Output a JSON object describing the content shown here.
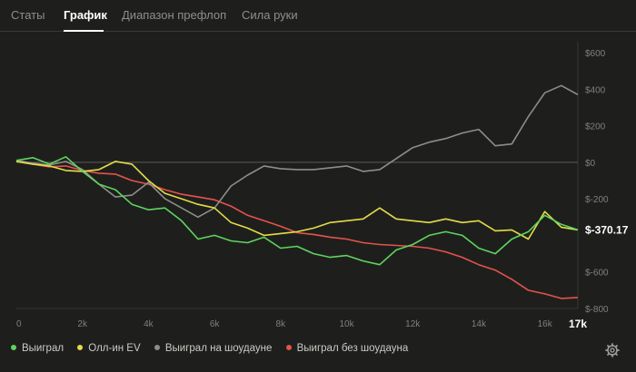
{
  "tabs": [
    {
      "label": "Статы",
      "active": false
    },
    {
      "label": "График",
      "active": true
    },
    {
      "label": "Диапазон префлоп",
      "active": false
    },
    {
      "label": "Сила руки",
      "active": false
    }
  ],
  "chart_data": {
    "type": "line",
    "x_label_max": "17k",
    "current_value_label": "$-370.17",
    "xlim": [
      0,
      17000
    ],
    "ylim": [
      -800,
      600
    ],
    "x_ticks": [
      {
        "v": 0,
        "label": "0"
      },
      {
        "v": 2000,
        "label": "2k"
      },
      {
        "v": 4000,
        "label": "4k"
      },
      {
        "v": 6000,
        "label": "6k"
      },
      {
        "v": 8000,
        "label": "8k"
      },
      {
        "v": 10000,
        "label": "10k"
      },
      {
        "v": 12000,
        "label": "12k"
      },
      {
        "v": 14000,
        "label": "14k"
      },
      {
        "v": 16000,
        "label": "16k"
      }
    ],
    "y_ticks": [
      {
        "v": 600,
        "label": "$600"
      },
      {
        "v": 400,
        "label": "$400"
      },
      {
        "v": 200,
        "label": "$200"
      },
      {
        "v": 0,
        "label": "$0"
      },
      {
        "v": -200,
        "label": "$-200"
      },
      {
        "v": -600,
        "label": "$-600"
      },
      {
        "v": -800,
        "label": "$-800"
      }
    ],
    "series": [
      {
        "name": "Выиграл без шоудауна",
        "color": "#e5534b",
        "points": [
          [
            0,
            5
          ],
          [
            500,
            -10
          ],
          [
            1000,
            -25
          ],
          [
            1500,
            -20
          ],
          [
            2000,
            -45
          ],
          [
            2500,
            -60
          ],
          [
            3000,
            -65
          ],
          [
            3500,
            -100
          ],
          [
            4000,
            -120
          ],
          [
            4500,
            -150
          ],
          [
            5000,
            -175
          ],
          [
            5500,
            -190
          ],
          [
            6000,
            -205
          ],
          [
            6500,
            -240
          ],
          [
            7000,
            -290
          ],
          [
            7500,
            -320
          ],
          [
            8000,
            -350
          ],
          [
            8500,
            -385
          ],
          [
            9000,
            -395
          ],
          [
            9500,
            -410
          ],
          [
            10000,
            -420
          ],
          [
            10500,
            -440
          ],
          [
            11000,
            -450
          ],
          [
            11500,
            -455
          ],
          [
            12000,
            -460
          ],
          [
            12500,
            -470
          ],
          [
            13000,
            -490
          ],
          [
            13500,
            -520
          ],
          [
            14000,
            -560
          ],
          [
            14500,
            -590
          ],
          [
            15000,
            -640
          ],
          [
            15500,
            -700
          ],
          [
            16000,
            -720
          ],
          [
            16500,
            -745
          ],
          [
            17000,
            -740
          ]
        ]
      },
      {
        "name": "Выиграл на шоудауне",
        "color": "#8c8e8a",
        "points": [
          [
            0,
            10
          ],
          [
            500,
            -5
          ],
          [
            1000,
            -15
          ],
          [
            1500,
            5
          ],
          [
            2000,
            -40
          ],
          [
            2500,
            -120
          ],
          [
            3000,
            -190
          ],
          [
            3500,
            -180
          ],
          [
            4000,
            -110
          ],
          [
            4500,
            -200
          ],
          [
            5000,
            -250
          ],
          [
            5500,
            -300
          ],
          [
            6000,
            -250
          ],
          [
            6500,
            -130
          ],
          [
            7000,
            -70
          ],
          [
            7500,
            -20
          ],
          [
            8000,
            -35
          ],
          [
            8500,
            -40
          ],
          [
            9000,
            -40
          ],
          [
            9500,
            -30
          ],
          [
            10000,
            -20
          ],
          [
            10500,
            -50
          ],
          [
            11000,
            -40
          ],
          [
            11500,
            20
          ],
          [
            12000,
            80
          ],
          [
            12500,
            110
          ],
          [
            13000,
            130
          ],
          [
            13500,
            160
          ],
          [
            14000,
            180
          ],
          [
            14500,
            90
          ],
          [
            15000,
            100
          ],
          [
            15500,
            250
          ],
          [
            16000,
            380
          ],
          [
            16500,
            420
          ],
          [
            17000,
            370
          ]
        ]
      },
      {
        "name": "Олл-ин EV",
        "color": "#e4dc48",
        "points": [
          [
            0,
            5
          ],
          [
            500,
            -10
          ],
          [
            1000,
            -20
          ],
          [
            1500,
            -45
          ],
          [
            2000,
            -50
          ],
          [
            2500,
            -40
          ],
          [
            3000,
            5
          ],
          [
            3500,
            -10
          ],
          [
            4000,
            -100
          ],
          [
            4500,
            -170
          ],
          [
            5000,
            -200
          ],
          [
            5500,
            -230
          ],
          [
            6000,
            -250
          ],
          [
            6500,
            -330
          ],
          [
            7000,
            -360
          ],
          [
            7500,
            -400
          ],
          [
            8000,
            -390
          ],
          [
            8500,
            -380
          ],
          [
            9000,
            -360
          ],
          [
            9500,
            -330
          ],
          [
            10000,
            -320
          ],
          [
            10500,
            -310
          ],
          [
            11000,
            -250
          ],
          [
            11500,
            -310
          ],
          [
            12000,
            -320
          ],
          [
            12500,
            -330
          ],
          [
            13000,
            -310
          ],
          [
            13500,
            -330
          ],
          [
            14000,
            -320
          ],
          [
            14500,
            -375
          ],
          [
            15000,
            -370
          ],
          [
            15500,
            -420
          ],
          [
            16000,
            -270
          ],
          [
            16500,
            -355
          ],
          [
            17000,
            -370
          ]
        ]
      },
      {
        "name": "Выиграл",
        "color": "#5fd45f",
        "points": [
          [
            0,
            10
          ],
          [
            500,
            25
          ],
          [
            1000,
            -10
          ],
          [
            1500,
            30
          ],
          [
            2000,
            -50
          ],
          [
            2500,
            -120
          ],
          [
            3000,
            -150
          ],
          [
            3500,
            -230
          ],
          [
            4000,
            -260
          ],
          [
            4500,
            -250
          ],
          [
            5000,
            -320
          ],
          [
            5500,
            -420
          ],
          [
            6000,
            -400
          ],
          [
            6500,
            -430
          ],
          [
            7000,
            -440
          ],
          [
            7500,
            -410
          ],
          [
            8000,
            -470
          ],
          [
            8500,
            -460
          ],
          [
            9000,
            -500
          ],
          [
            9500,
            -520
          ],
          [
            10000,
            -510
          ],
          [
            10500,
            -540
          ],
          [
            11000,
            -560
          ],
          [
            11500,
            -480
          ],
          [
            12000,
            -450
          ],
          [
            12500,
            -400
          ],
          [
            13000,
            -380
          ],
          [
            13500,
            -400
          ],
          [
            14000,
            -470
          ],
          [
            14500,
            -500
          ],
          [
            15000,
            -420
          ],
          [
            15500,
            -380
          ],
          [
            16000,
            -290
          ],
          [
            16500,
            -340
          ],
          [
            17000,
            -370
          ]
        ]
      }
    ]
  },
  "legend": [
    {
      "label": "Выиграл",
      "color": "#5fd45f"
    },
    {
      "label": "Олл-ин EV",
      "color": "#e4dc48"
    },
    {
      "label": "Выиграл на шоудауне",
      "color": "#8c8e8a"
    },
    {
      "label": "Выиграл без шоудауна",
      "color": "#e5534b"
    }
  ],
  "icons": {
    "settings": "gear-icon"
  }
}
